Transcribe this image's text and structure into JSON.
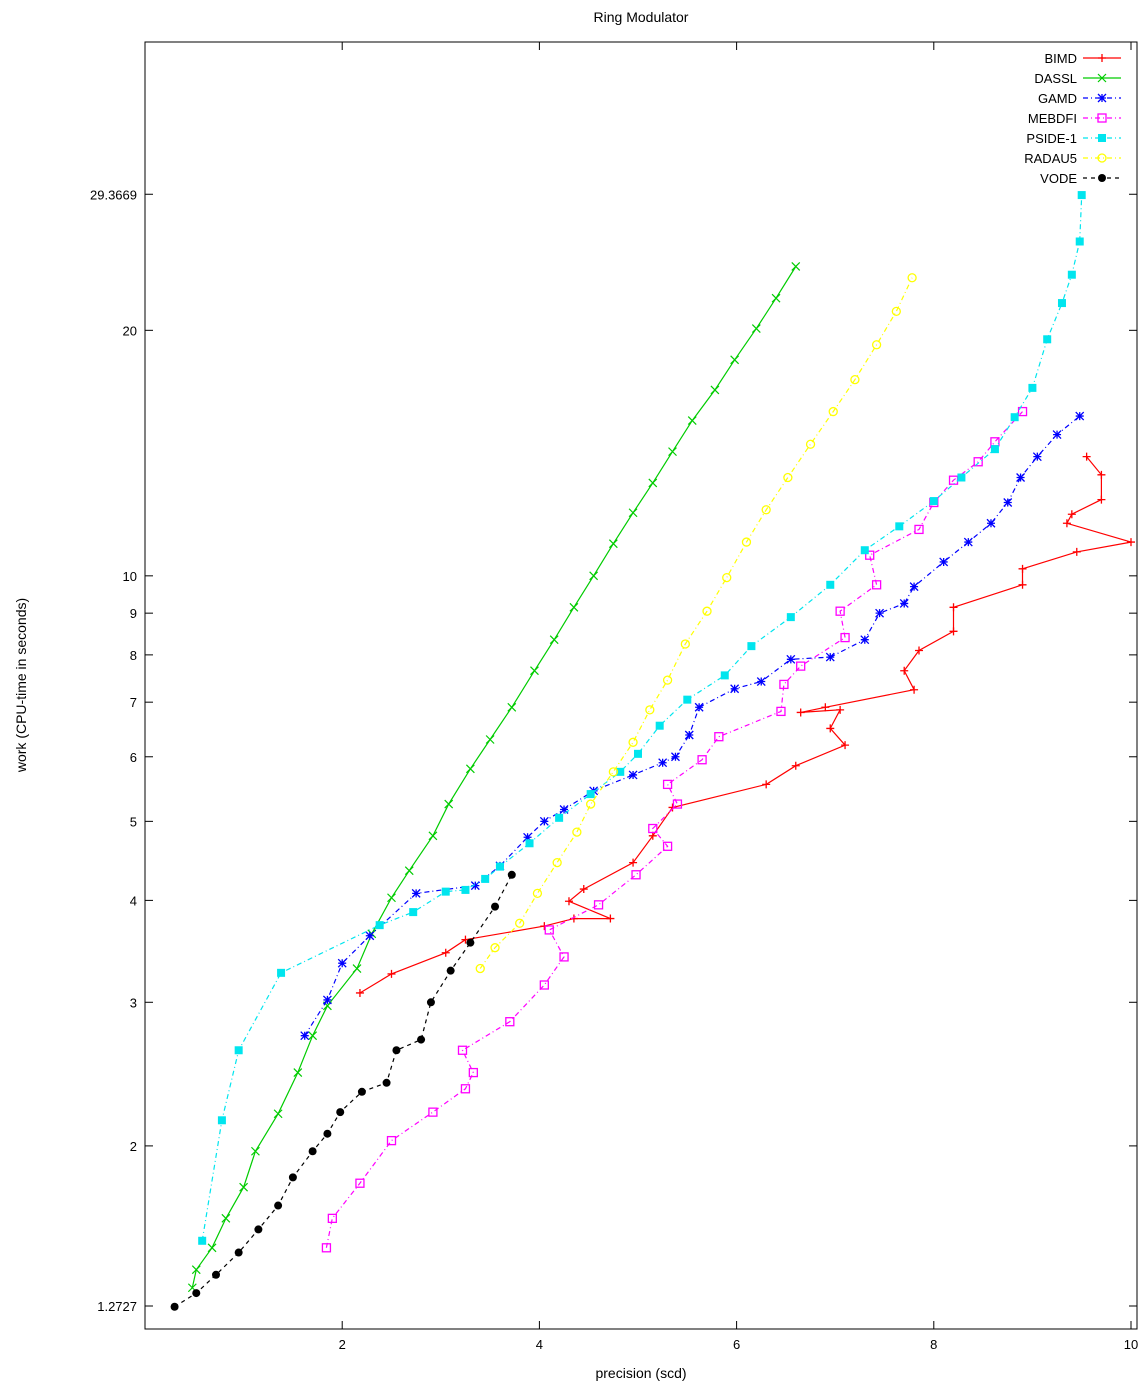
{
  "chart_data": {
    "type": "line",
    "title": "Ring Modulator",
    "xlabel": "precision (scd)",
    "ylabel": "work (CPU-time in seconds)",
    "xlim": [
      0,
      10
    ],
    "ylim": [
      1.2,
      40
    ],
    "yscale": "log",
    "grid": false,
    "legend_position": "top-right",
    "xticks": [
      2,
      4,
      6,
      8,
      10
    ],
    "xtick_labels": [
      "2",
      "4",
      "6",
      "8",
      "10"
    ],
    "yticks": [
      1.2727,
      2,
      3,
      4,
      5,
      6,
      7,
      8,
      9,
      10,
      20,
      29.3669
    ],
    "ytick_labels": [
      "1.2727",
      "2",
      "3",
      "4",
      "5",
      "6",
      "7",
      "8",
      "9",
      "10",
      "20",
      "29.3669"
    ],
    "series": [
      {
        "name": "BIMD",
        "color": "#ff0000",
        "marker": "plus",
        "dash": "",
        "points": [
          [
            2.18,
            3.08
          ],
          [
            2.5,
            3.25
          ],
          [
            3.05,
            3.45
          ],
          [
            3.25,
            3.58
          ],
          [
            4.05,
            3.72
          ],
          [
            4.35,
            3.8
          ],
          [
            4.72,
            3.8
          ],
          [
            4.3,
            3.99
          ],
          [
            4.45,
            4.13
          ],
          [
            4.95,
            4.45
          ],
          [
            5.15,
            4.8
          ],
          [
            5.35,
            5.2
          ],
          [
            6.3,
            5.55
          ],
          [
            6.6,
            5.85
          ],
          [
            7.1,
            6.2
          ],
          [
            6.95,
            6.5
          ],
          [
            7.05,
            6.85
          ],
          [
            6.65,
            6.8
          ],
          [
            6.9,
            6.9
          ],
          [
            7.8,
            7.25
          ],
          [
            7.7,
            7.65
          ],
          [
            7.85,
            8.1
          ],
          [
            8.2,
            8.55
          ],
          [
            8.2,
            9.15
          ],
          [
            8.9,
            9.75
          ],
          [
            8.9,
            10.2
          ],
          [
            9.45,
            10.7
          ],
          [
            10.0,
            11.0
          ],
          [
            9.35,
            11.6
          ],
          [
            9.4,
            11.9
          ],
          [
            9.7,
            12.4
          ],
          [
            9.7,
            13.3
          ],
          [
            9.55,
            14.0
          ]
        ]
      },
      {
        "name": "DASSL",
        "color": "#00cc00",
        "marker": "x",
        "dash": "",
        "points": [
          [
            0.48,
            1.34
          ],
          [
            0.52,
            1.41
          ],
          [
            0.68,
            1.5
          ],
          [
            0.82,
            1.63
          ],
          [
            1.0,
            1.78
          ],
          [
            1.12,
            1.97
          ],
          [
            1.35,
            2.19
          ],
          [
            1.55,
            2.46
          ],
          [
            1.7,
            2.73
          ],
          [
            1.85,
            2.97
          ],
          [
            2.15,
            3.3
          ],
          [
            2.3,
            3.64
          ],
          [
            2.5,
            4.03
          ],
          [
            2.68,
            4.35
          ],
          [
            2.92,
            4.8
          ],
          [
            3.08,
            5.25
          ],
          [
            3.3,
            5.8
          ],
          [
            3.5,
            6.3
          ],
          [
            3.72,
            6.9
          ],
          [
            3.95,
            7.65
          ],
          [
            4.15,
            8.35
          ],
          [
            4.35,
            9.15
          ],
          [
            4.55,
            10.0
          ],
          [
            4.75,
            10.95
          ],
          [
            4.95,
            11.95
          ],
          [
            5.15,
            13.0
          ],
          [
            5.35,
            14.2
          ],
          [
            5.55,
            15.5
          ],
          [
            5.78,
            16.9
          ],
          [
            5.98,
            18.4
          ],
          [
            6.2,
            20.1
          ],
          [
            6.4,
            21.9
          ],
          [
            6.6,
            23.95
          ]
        ]
      },
      {
        "name": "GAMD",
        "color": "#0000ff",
        "marker": "star",
        "dash": "5,3,1,3",
        "points": [
          [
            1.62,
            2.73
          ],
          [
            1.85,
            3.02
          ],
          [
            2.0,
            3.35
          ],
          [
            2.28,
            3.62
          ],
          [
            2.75,
            4.08
          ],
          [
            3.35,
            4.17
          ],
          [
            3.6,
            4.41
          ],
          [
            3.88,
            4.78
          ],
          [
            4.05,
            5.0
          ],
          [
            4.25,
            5.17
          ],
          [
            4.55,
            5.45
          ],
          [
            4.95,
            5.7
          ],
          [
            5.25,
            5.9
          ],
          [
            5.38,
            6.0
          ],
          [
            5.52,
            6.38
          ],
          [
            5.62,
            6.9
          ],
          [
            5.98,
            7.27
          ],
          [
            6.25,
            7.42
          ],
          [
            6.55,
            7.9
          ],
          [
            6.95,
            7.95
          ],
          [
            7.3,
            8.35
          ],
          [
            7.45,
            9.0
          ],
          [
            7.7,
            9.25
          ],
          [
            7.8,
            9.7
          ],
          [
            8.1,
            10.4
          ],
          [
            8.35,
            11.0
          ],
          [
            8.58,
            11.6
          ],
          [
            8.75,
            12.3
          ],
          [
            8.88,
            13.2
          ],
          [
            9.05,
            14.0
          ],
          [
            9.25,
            14.9
          ],
          [
            9.48,
            15.7
          ]
        ]
      },
      {
        "name": "MEBDFI",
        "color": "#ff00ff",
        "marker": "square",
        "dash": "5,3,1,3",
        "points": [
          [
            1.84,
            1.5
          ],
          [
            1.9,
            1.63
          ],
          [
            2.18,
            1.8
          ],
          [
            2.5,
            2.03
          ],
          [
            2.92,
            2.2
          ],
          [
            3.25,
            2.35
          ],
          [
            3.33,
            2.46
          ],
          [
            3.22,
            2.62
          ],
          [
            3.7,
            2.84
          ],
          [
            4.05,
            3.15
          ],
          [
            4.25,
            3.41
          ],
          [
            4.1,
            3.68
          ],
          [
            4.6,
            3.95
          ],
          [
            4.98,
            4.3
          ],
          [
            5.3,
            4.66
          ],
          [
            5.15,
            4.9
          ],
          [
            5.4,
            5.25
          ],
          [
            5.3,
            5.55
          ],
          [
            5.65,
            5.95
          ],
          [
            5.82,
            6.35
          ],
          [
            6.45,
            6.82
          ],
          [
            6.48,
            7.36
          ],
          [
            6.65,
            7.75
          ],
          [
            7.1,
            8.4
          ],
          [
            7.05,
            9.05
          ],
          [
            7.42,
            9.75
          ],
          [
            7.35,
            10.6
          ],
          [
            7.85,
            11.4
          ],
          [
            8.0,
            12.3
          ],
          [
            8.2,
            13.1
          ],
          [
            8.45,
            13.8
          ],
          [
            8.62,
            14.6
          ],
          [
            8.9,
            15.9
          ]
        ]
      },
      {
        "name": "PSIDE-1",
        "color": "#00e5ee",
        "marker": "filled-square",
        "dash": "5,3,1,3",
        "points": [
          [
            0.58,
            1.53
          ],
          [
            0.78,
            2.15
          ],
          [
            0.95,
            2.62
          ],
          [
            1.38,
            3.26
          ],
          [
            2.38,
            3.73
          ],
          [
            2.72,
            3.87
          ],
          [
            3.05,
            4.1
          ],
          [
            3.25,
            4.12
          ],
          [
            3.45,
            4.25
          ],
          [
            3.6,
            4.4
          ],
          [
            3.9,
            4.7
          ],
          [
            4.2,
            5.05
          ],
          [
            4.52,
            5.4
          ],
          [
            4.82,
            5.75
          ],
          [
            5.0,
            6.05
          ],
          [
            5.22,
            6.55
          ],
          [
            5.5,
            7.05
          ],
          [
            5.88,
            7.55
          ],
          [
            6.15,
            8.2
          ],
          [
            6.55,
            8.9
          ],
          [
            6.95,
            9.75
          ],
          [
            7.3,
            10.75
          ],
          [
            7.65,
            11.5
          ],
          [
            8.0,
            12.35
          ],
          [
            8.28,
            13.2
          ],
          [
            8.62,
            14.3
          ],
          [
            8.82,
            15.65
          ],
          [
            9.0,
            17.0
          ],
          [
            9.15,
            19.5
          ],
          [
            9.3,
            21.6
          ],
          [
            9.4,
            23.4
          ],
          [
            9.48,
            25.7
          ],
          [
            9.5,
            29.3
          ]
        ]
      },
      {
        "name": "RADAU5",
        "color": "#ffff00",
        "marker": "circle",
        "dash": "5,3,1,3",
        "points": [
          [
            3.4,
            3.3
          ],
          [
            3.55,
            3.5
          ],
          [
            3.8,
            3.75
          ],
          [
            3.98,
            4.08
          ],
          [
            4.18,
            4.45
          ],
          [
            4.38,
            4.85
          ],
          [
            4.52,
            5.25
          ],
          [
            4.75,
            5.75
          ],
          [
            4.95,
            6.25
          ],
          [
            5.12,
            6.85
          ],
          [
            5.3,
            7.45
          ],
          [
            5.48,
            8.25
          ],
          [
            5.7,
            9.05
          ],
          [
            5.9,
            9.95
          ],
          [
            6.1,
            11.0
          ],
          [
            6.3,
            12.05
          ],
          [
            6.52,
            13.2
          ],
          [
            6.75,
            14.5
          ],
          [
            6.98,
            15.9
          ],
          [
            7.2,
            17.4
          ],
          [
            7.42,
            19.2
          ],
          [
            7.62,
            21.1
          ],
          [
            7.78,
            23.2
          ]
        ]
      },
      {
        "name": "VODE",
        "color": "#000000",
        "marker": "filled-circle",
        "dash": "4,4",
        "points": [
          [
            0.3,
            1.27
          ],
          [
            0.52,
            1.32
          ],
          [
            0.72,
            1.39
          ],
          [
            0.95,
            1.48
          ],
          [
            1.15,
            1.58
          ],
          [
            1.35,
            1.69
          ],
          [
            1.5,
            1.83
          ],
          [
            1.7,
            1.97
          ],
          [
            1.85,
            2.07
          ],
          [
            1.98,
            2.2
          ],
          [
            2.2,
            2.33
          ],
          [
            2.45,
            2.39
          ],
          [
            2.55,
            2.62
          ],
          [
            2.8,
            2.7
          ],
          [
            2.9,
            3.0
          ],
          [
            3.1,
            3.28
          ],
          [
            3.3,
            3.55
          ],
          [
            3.55,
            3.93
          ],
          [
            3.72,
            4.3
          ]
        ]
      }
    ]
  }
}
